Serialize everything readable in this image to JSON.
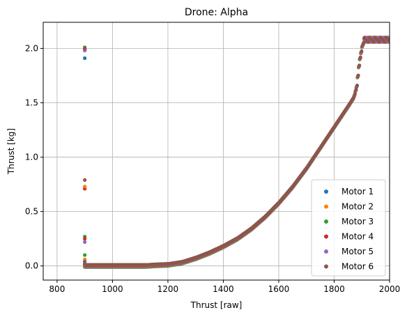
{
  "chart_data": {
    "type": "scatter",
    "title": "Drone: Alpha",
    "xlabel": "Thrust [raw]",
    "ylabel": "Thrust [kg]",
    "xlim": [
      750,
      2000
    ],
    "ylim": [
      -0.13,
      2.24
    ],
    "xticks": [
      800,
      1000,
      1200,
      1400,
      1600,
      1800,
      2000
    ],
    "yticks": [
      0.0,
      0.5,
      1.0,
      1.5,
      2.0
    ],
    "xtick_labels": [
      "800",
      "1000",
      "1200",
      "1400",
      "1600",
      "1800",
      "2000"
    ],
    "ytick_labels": [
      "0.0",
      "0.5",
      "1.0",
      "1.5",
      "2.0"
    ],
    "grid": true,
    "legend_position": "lower-right",
    "series": [
      {
        "name": "Motor 1",
        "color": "#1f77b4"
      },
      {
        "name": "Motor 2",
        "color": "#ff7f0e"
      },
      {
        "name": "Motor 3",
        "color": "#2ca02c"
      },
      {
        "name": "Motor 4",
        "color": "#d62728"
      },
      {
        "name": "Motor 5",
        "color": "#9467bd"
      },
      {
        "name": "Motor 6",
        "color": "#8c564b"
      }
    ],
    "curve": [
      [
        900,
        0.0
      ],
      [
        1000,
        0.0
      ],
      [
        1100,
        0.0
      ],
      [
        1120,
        0.0
      ],
      [
        1150,
        0.005
      ],
      [
        1200,
        0.01
      ],
      [
        1250,
        0.03
      ],
      [
        1300,
        0.07
      ],
      [
        1350,
        0.12
      ],
      [
        1400,
        0.18
      ],
      [
        1450,
        0.25
      ],
      [
        1500,
        0.34
      ],
      [
        1550,
        0.45
      ],
      [
        1600,
        0.58
      ],
      [
        1650,
        0.73
      ],
      [
        1700,
        0.9
      ],
      [
        1750,
        1.09
      ],
      [
        1800,
        1.28
      ],
      [
        1850,
        1.47
      ],
      [
        1870,
        1.55
      ],
      [
        1880,
        1.65
      ],
      [
        1890,
        1.88
      ],
      [
        1900,
        2.02
      ],
      [
        1910,
        2.08
      ],
      [
        1950,
        2.09
      ],
      [
        2000,
        2.05
      ]
    ],
    "spike_x": 900,
    "spike_points": [
      [
        900,
        1.91,
        0
      ],
      [
        900,
        1.99,
        1
      ],
      [
        900,
        2.01,
        2
      ],
      [
        900,
        1.99,
        3
      ],
      [
        900,
        1.98,
        4
      ],
      [
        900,
        2.0,
        5
      ],
      [
        900,
        0.79,
        5
      ],
      [
        900,
        0.72,
        4
      ],
      [
        900,
        0.71,
        3
      ],
      [
        900,
        0.73,
        1
      ],
      [
        900,
        0.27,
        2
      ],
      [
        900,
        0.25,
        3
      ],
      [
        900,
        0.22,
        4
      ],
      [
        900,
        0.1,
        2
      ],
      [
        900,
        0.06,
        1
      ],
      [
        900,
        0.04,
        5
      ],
      [
        900,
        0.02,
        0
      ],
      [
        900,
        0.01,
        3
      ]
    ]
  }
}
